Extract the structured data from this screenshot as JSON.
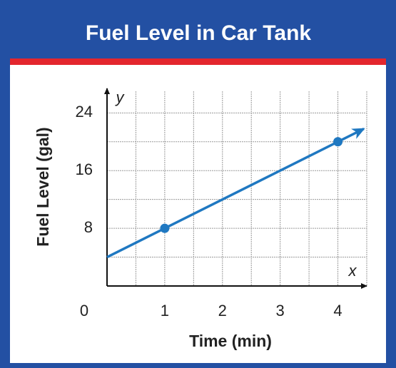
{
  "chart_data": {
    "type": "line",
    "title": "Fuel Level in Car Tank",
    "x_label": "Time (min)",
    "y_label": "Fuel Level (gal)",
    "x_axis_name": "x",
    "y_axis_name": "y",
    "xlim": [
      0,
      4.5
    ],
    "ylim": [
      0,
      27
    ],
    "xticks": [
      0,
      1,
      2,
      3,
      4
    ],
    "yticks": [
      8,
      16,
      24
    ],
    "grid": true,
    "color": "#1f78c1",
    "line": {
      "x": [
        0,
        4.45
      ],
      "values": [
        4,
        21.8
      ]
    },
    "points": {
      "x": [
        1,
        4
      ],
      "values": [
        8,
        20
      ]
    }
  }
}
